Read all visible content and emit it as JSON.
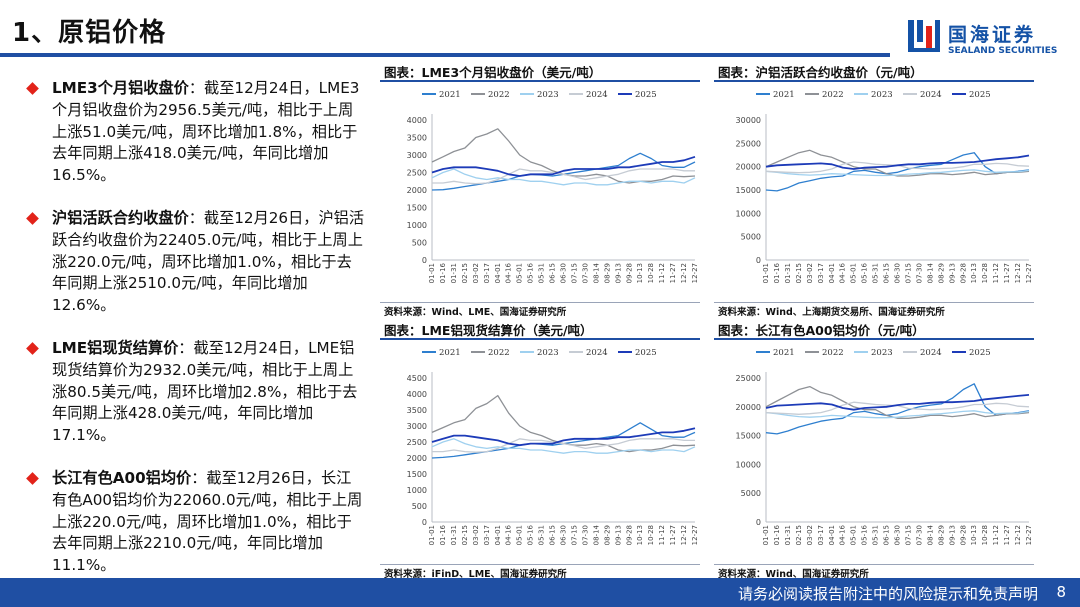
{
  "page": {
    "title": "1、原铝价格",
    "logo": {
      "cn": "国海证券",
      "en": "SEALAND SECURITIES"
    },
    "footer_text": "请务必阅读报告附注中的风险提示和免责声明",
    "page_number": "8"
  },
  "colors": {
    "primary": "#1f4fa3",
    "bullet": "#e2231a",
    "s2021": "#2e7fcf",
    "s2022": "#8e9196",
    "s2023": "#9fd0ef",
    "s2024": "#c6ccd4",
    "s2025": "#1d3bb8"
  },
  "bullets": [
    {
      "lead": "LME3个月铝收盘价",
      "text": "：截至12月24日，LME3个月铝收盘价为2956.5美元/吨，相比于上周上涨51.0美元/吨，周环比增加1.8%，相比于去年同期上涨418.0美元/吨，年同比增加16.5%。"
    },
    {
      "lead": "沪铝活跃合约收盘价",
      "text": "：截至12月26日，沪铝活跃合约收盘价为22405.0元/吨，相比于上周上涨220.0元/吨，周环比增加1.0%，相比于去年同期上涨2510.0元/吨，年同比增加12.6%。"
    },
    {
      "lead": "LME铝现货结算价",
      "text": "：截至12月24日，LME铝现货结算价为2932.0美元/吨，相比于上周上涨80.5美元/吨，周环比增加2.8%，相比于去年同期上涨428.0美元/吨，年同比增加17.1%。"
    },
    {
      "lead": "长江有色A00铝均价",
      "text": "：截至12月26日，长江有色A00铝均价为22060.0元/吨，相比于上周上涨220.0元/吨，周环比增加1.0%，相比于去年同期上涨2210.0元/吨，年同比增加11.1%。"
    }
  ],
  "chart_data": [
    {
      "type": "line",
      "id": "c1",
      "title": "图表：LME3个月铝收盘价（美元/吨）",
      "source": "资料来源：Wind、LME、国海证券研究所",
      "ylim": [
        0,
        4000
      ],
      "yticks": [
        0,
        500,
        1000,
        1500,
        2000,
        2500,
        3000,
        3500,
        4000
      ],
      "categories": [
        "01-01",
        "01-16",
        "01-31",
        "02-15",
        "03-02",
        "03-17",
        "04-01",
        "04-16",
        "05-01",
        "05-16",
        "05-31",
        "06-15",
        "06-30",
        "07-15",
        "07-30",
        "08-14",
        "08-29",
        "09-13",
        "09-28",
        "10-13",
        "10-28",
        "11-12",
        "11-27",
        "12-12",
        "12-27"
      ],
      "grid": false,
      "legend": "top",
      "series": [
        {
          "name": "2021",
          "values": [
            2000,
            2010,
            2050,
            2100,
            2150,
            2200,
            2250,
            2300,
            2400,
            2450,
            2430,
            2400,
            2450,
            2500,
            2550,
            2600,
            2650,
            2700,
            2900,
            3050,
            2900,
            2700,
            2650,
            2650,
            2800
          ]
        },
        {
          "name": "2022",
          "values": [
            2800,
            2950,
            3100,
            3200,
            3500,
            3600,
            3750,
            3400,
            3000,
            2800,
            2700,
            2550,
            2450,
            2400,
            2400,
            2450,
            2400,
            2250,
            2200,
            2250,
            2250,
            2300,
            2400,
            2380,
            2400
          ]
        },
        {
          "name": "2023",
          "values": [
            2350,
            2500,
            2600,
            2450,
            2350,
            2300,
            2350,
            2300,
            2300,
            2250,
            2250,
            2200,
            2150,
            2200,
            2200,
            2150,
            2150,
            2200,
            2250,
            2250,
            2200,
            2250,
            2250,
            2200,
            2350
          ]
        },
        {
          "name": "2024",
          "values": [
            2200,
            2200,
            2250,
            2200,
            2180,
            2200,
            2300,
            2450,
            2600,
            2550,
            2550,
            2500,
            2450,
            2380,
            2300,
            2350,
            2400,
            2450,
            2550,
            2600,
            2600,
            2600,
            2600,
            2550,
            2550
          ]
        },
        {
          "name": "2025",
          "values": [
            2500,
            2600,
            2650,
            2650,
            2650,
            2600,
            2550,
            2450,
            2400,
            2450,
            2450,
            2450,
            2550,
            2600,
            2600,
            2600,
            2600,
            2650,
            2650,
            2700,
            2750,
            2800,
            2800,
            2850,
            2950
          ]
        }
      ]
    },
    {
      "type": "line",
      "id": "c2",
      "title": "图表：沪铝活跃合约收盘价（元/吨）",
      "source": "资料来源：Wind、上海期货交易所、国海证券研究所",
      "ylim": [
        0,
        30000
      ],
      "yticks": [
        0,
        5000,
        10000,
        15000,
        20000,
        25000,
        30000
      ],
      "categories": [
        "01-01",
        "01-16",
        "01-31",
        "02-15",
        "03-02",
        "03-17",
        "04-01",
        "04-16",
        "05-01",
        "05-16",
        "05-31",
        "06-15",
        "06-30",
        "07-15",
        "07-30",
        "08-14",
        "08-29",
        "09-13",
        "09-28",
        "10-13",
        "10-28",
        "11-12",
        "11-27",
        "12-12",
        "12-27"
      ],
      "grid": false,
      "legend": "top",
      "series": [
        {
          "name": "2021",
          "values": [
            15000,
            14800,
            15500,
            16500,
            17000,
            17500,
            17800,
            18000,
            19000,
            19200,
            18800,
            18500,
            18800,
            19500,
            20000,
            20300,
            20500,
            21500,
            22500,
            23000,
            20000,
            18500,
            18800,
            19000,
            19300
          ]
        },
        {
          "name": "2022",
          "values": [
            20000,
            21000,
            22000,
            23000,
            23500,
            22500,
            22000,
            21000,
            20000,
            19500,
            19500,
            18500,
            18000,
            18000,
            18200,
            18500,
            18500,
            18300,
            18500,
            18800,
            18300,
            18500,
            18800,
            18800,
            19000
          ]
        },
        {
          "name": "2023",
          "values": [
            19000,
            18800,
            18500,
            18300,
            18200,
            18300,
            18500,
            18400,
            18300,
            18200,
            18100,
            18100,
            18200,
            18400,
            18500,
            18700,
            18800,
            19000,
            19200,
            19300,
            19000,
            18800,
            18900,
            18900,
            19200
          ]
        },
        {
          "name": "2024",
          "values": [
            19000,
            18900,
            18800,
            18700,
            18800,
            19000,
            19500,
            20500,
            21000,
            20800,
            20500,
            20400,
            20300,
            19700,
            19600,
            19500,
            19600,
            19700,
            20000,
            20500,
            20500,
            20700,
            20600,
            20200,
            20100
          ]
        },
        {
          "name": "2025",
          "values": [
            20000,
            20300,
            20400,
            20500,
            20600,
            20700,
            20500,
            19800,
            19500,
            19800,
            19900,
            20000,
            20300,
            20500,
            20500,
            20700,
            20800,
            20800,
            20900,
            21000,
            21300,
            21600,
            21800,
            22000,
            22400
          ]
        }
      ]
    },
    {
      "type": "line",
      "id": "c3",
      "title": "图表：LME铝现货结算价（美元/吨）",
      "source": "资料来源：iFinD、LME、国海证券研究所",
      "ylim": [
        0,
        4500
      ],
      "yticks": [
        0,
        500,
        1000,
        1500,
        2000,
        2500,
        3000,
        3500,
        4000,
        4500
      ],
      "categories": [
        "01-01",
        "01-16",
        "01-31",
        "02-15",
        "03-02",
        "03-17",
        "04-01",
        "04-16",
        "05-01",
        "05-16",
        "05-31",
        "06-15",
        "06-30",
        "07-15",
        "07-30",
        "08-14",
        "08-29",
        "09-13",
        "09-28",
        "10-13",
        "10-28",
        "11-12",
        "11-27",
        "12-12",
        "12-27"
      ],
      "grid": false,
      "legend": "top",
      "series": [
        {
          "name": "2021",
          "values": [
            2000,
            2020,
            2050,
            2100,
            2150,
            2200,
            2250,
            2300,
            2400,
            2450,
            2430,
            2400,
            2450,
            2500,
            2550,
            2600,
            2650,
            2700,
            2900,
            3100,
            2900,
            2700,
            2650,
            2650,
            2800
          ]
        },
        {
          "name": "2022",
          "values": [
            2800,
            2950,
            3100,
            3200,
            3550,
            3700,
            3950,
            3400,
            3000,
            2800,
            2700,
            2550,
            2450,
            2400,
            2400,
            2450,
            2400,
            2250,
            2200,
            2250,
            2250,
            2300,
            2400,
            2380,
            2400
          ]
        },
        {
          "name": "2023",
          "values": [
            2350,
            2500,
            2600,
            2450,
            2350,
            2300,
            2350,
            2300,
            2300,
            2250,
            2250,
            2200,
            2150,
            2200,
            2200,
            2150,
            2150,
            2200,
            2250,
            2250,
            2200,
            2250,
            2250,
            2200,
            2350
          ]
        },
        {
          "name": "2024",
          "values": [
            2200,
            2200,
            2250,
            2200,
            2180,
            2200,
            2300,
            2450,
            2600,
            2550,
            2550,
            2500,
            2450,
            2380,
            2300,
            2350,
            2400,
            2450,
            2550,
            2600,
            2600,
            2600,
            2600,
            2550,
            2550
          ]
        },
        {
          "name": "2025",
          "values": [
            2500,
            2600,
            2700,
            2700,
            2650,
            2600,
            2550,
            2450,
            2400,
            2450,
            2450,
            2450,
            2550,
            2600,
            2600,
            2600,
            2600,
            2650,
            2650,
            2700,
            2750,
            2800,
            2800,
            2850,
            2930
          ]
        }
      ]
    },
    {
      "type": "line",
      "id": "c4",
      "title": "图表：长江有色A00铝均价（元/吨）",
      "source": "资料来源：Wind、国海证券研究所",
      "ylim": [
        0,
        25000
      ],
      "yticks": [
        0,
        5000,
        10000,
        15000,
        20000,
        25000
      ],
      "categories": [
        "01-01",
        "01-16",
        "01-31",
        "02-15",
        "03-02",
        "03-17",
        "04-01",
        "04-16",
        "05-01",
        "05-16",
        "05-31",
        "06-15",
        "06-30",
        "07-15",
        "07-30",
        "08-14",
        "08-29",
        "09-13",
        "09-28",
        "10-13",
        "10-28",
        "11-12",
        "11-27",
        "12-12",
        "12-27"
      ],
      "grid": false,
      "legend": "top",
      "series": [
        {
          "name": "2021",
          "values": [
            15500,
            15300,
            15800,
            16500,
            17000,
            17500,
            17800,
            18000,
            19000,
            19200,
            18800,
            18500,
            18800,
            19500,
            20000,
            20300,
            20500,
            21500,
            23000,
            24000,
            20000,
            18500,
            18800,
            19000,
            19300
          ]
        },
        {
          "name": "2022",
          "values": [
            20000,
            21000,
            22000,
            23000,
            23500,
            22500,
            22000,
            21000,
            20000,
            19500,
            19500,
            18500,
            18000,
            18000,
            18200,
            18500,
            18500,
            18300,
            18500,
            18800,
            18300,
            18500,
            18800,
            18800,
            19000
          ]
        },
        {
          "name": "2023",
          "values": [
            19000,
            18800,
            18500,
            18300,
            18200,
            18300,
            18500,
            18400,
            18300,
            18200,
            18100,
            18100,
            18200,
            18400,
            18500,
            18700,
            18800,
            19000,
            19200,
            19300,
            19000,
            18800,
            18900,
            18900,
            19200
          ]
        },
        {
          "name": "2024",
          "values": [
            19000,
            18900,
            18800,
            18700,
            18800,
            19000,
            19500,
            20300,
            20800,
            20600,
            20400,
            20300,
            20200,
            19700,
            19600,
            19500,
            19600,
            19700,
            20000,
            20400,
            20400,
            20600,
            20500,
            20100,
            20000
          ]
        },
        {
          "name": "2025",
          "values": [
            19800,
            20200,
            20300,
            20400,
            20500,
            20600,
            20400,
            19800,
            19500,
            19800,
            19900,
            20000,
            20300,
            20500,
            20500,
            20700,
            20800,
            20800,
            20900,
            21000,
            21300,
            21500,
            21700,
            21900,
            22060
          ]
        }
      ]
    }
  ]
}
